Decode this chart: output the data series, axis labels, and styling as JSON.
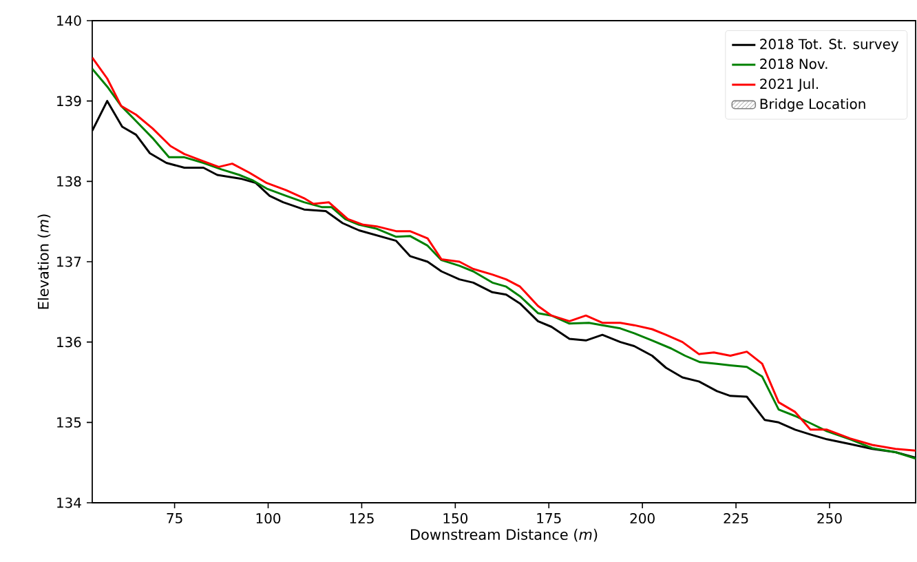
{
  "chart_data": {
    "type": "line",
    "xlabel": "Downstream Distance (*m*)",
    "ylabel": "Elevation (*m*)",
    "xlim": [
      53,
      273
    ],
    "ylim": [
      134,
      140
    ],
    "xticks": [
      75,
      100,
      125,
      150,
      175,
      200,
      225,
      250
    ],
    "yticks": [
      134,
      135,
      136,
      137,
      138,
      139,
      140
    ],
    "legend": "top right",
    "grid": false,
    "line_style": "solid",
    "marker": "none",
    "series": [
      {
        "name": "2018 Tot. St. survey",
        "color": "#000000",
        "x": [
          53,
          57,
          61,
          64.7,
          68.4,
          72.8,
          77.6,
          82.7,
          86.4,
          93,
          96.7,
          100.4,
          104,
          109.6,
          115.4,
          119.9,
          124.3,
          134.2,
          137.9,
          142.6,
          146.3,
          151.1,
          154.8,
          159.9,
          163.6,
          167.3,
          172.1,
          175.7,
          180.5,
          184.9,
          189.3,
          194.1,
          197.8,
          202.6,
          206.3,
          210.7,
          215.1,
          219.9,
          223.5,
          227.9,
          232.7,
          236.4,
          240.8,
          244.9,
          249.3,
          255.5,
          261.4,
          267.6,
          273
        ],
        "values": [
          138.63,
          139.0,
          138.68,
          138.58,
          138.35,
          138.23,
          138.17,
          138.17,
          138.08,
          138.03,
          137.98,
          137.82,
          137.74,
          137.65,
          137.63,
          137.48,
          137.39,
          137.26,
          137.07,
          137.0,
          136.88,
          136.78,
          136.74,
          136.62,
          136.59,
          136.48,
          136.26,
          136.19,
          136.04,
          136.02,
          136.09,
          136.0,
          135.95,
          135.83,
          135.68,
          135.56,
          135.51,
          135.39,
          135.33,
          135.32,
          135.03,
          135.0,
          134.91,
          134.85,
          134.79,
          134.73,
          134.67,
          134.63,
          134.56
        ]
      },
      {
        "name": "2018 Nov.",
        "color": "#008000",
        "x": [
          53,
          57,
          60.7,
          64.3,
          69.1,
          73.5,
          77.6,
          82.7,
          87.5,
          92.3,
          96,
          99.6,
          104.8,
          109.6,
          114.3,
          116.9,
          120.6,
          124.3,
          129,
          134.2,
          137.9,
          142.6,
          146.3,
          151.1,
          154.8,
          159.9,
          163.6,
          167.3,
          172.1,
          175.7,
          180.5,
          185.7,
          189.3,
          194.1,
          197.8,
          202.6,
          207.7,
          211.4,
          215.4,
          219.9,
          223.5,
          227.9,
          232,
          236.4,
          240.8,
          244.9,
          249.3,
          255.5,
          261.4,
          267.6,
          273
        ],
        "values": [
          139.4,
          139.18,
          138.94,
          138.77,
          138.54,
          138.3,
          138.3,
          138.23,
          138.15,
          138.08,
          138.01,
          137.91,
          137.82,
          137.74,
          137.68,
          137.68,
          137.53,
          137.46,
          137.41,
          137.31,
          137.32,
          137.2,
          137.02,
          136.95,
          136.88,
          136.74,
          136.69,
          136.57,
          136.36,
          136.33,
          136.23,
          136.24,
          136.21,
          136.17,
          136.11,
          136.02,
          135.92,
          135.83,
          135.75,
          135.73,
          135.71,
          135.69,
          135.57,
          135.16,
          135.08,
          134.99,
          134.89,
          134.79,
          134.68,
          134.63,
          134.55
        ]
      },
      {
        "name": "2021 Jul.",
        "color": "#ff0000",
        "x": [
          53,
          57,
          60.7,
          64.7,
          69.1,
          73.9,
          77.6,
          82.7,
          86.8,
          90.4,
          94.9,
          99.6,
          104.8,
          109.6,
          112.1,
          116.2,
          121.3,
          125.4,
          129,
          134.2,
          137.9,
          142.6,
          146.3,
          151.1,
          154.8,
          159.9,
          163.6,
          167.3,
          172.1,
          175.7,
          180.5,
          184.9,
          189.3,
          194.1,
          197.8,
          202.6,
          206.3,
          210.7,
          215.1,
          219.1,
          223.5,
          227.9,
          232,
          236.4,
          240.8,
          244.9,
          249.3,
          255.5,
          261.4,
          267.6,
          273
        ],
        "values": [
          139.54,
          139.28,
          138.94,
          138.83,
          138.66,
          138.44,
          138.34,
          138.25,
          138.18,
          138.22,
          138.11,
          137.98,
          137.89,
          137.79,
          137.72,
          137.74,
          137.53,
          137.46,
          137.44,
          137.38,
          137.38,
          137.29,
          137.03,
          137.0,
          136.91,
          136.84,
          136.78,
          136.69,
          136.45,
          136.33,
          136.26,
          136.33,
          136.24,
          136.24,
          136.21,
          136.16,
          136.09,
          136.0,
          135.85,
          135.87,
          135.83,
          135.88,
          135.73,
          135.25,
          135.13,
          134.91,
          134.91,
          134.8,
          134.72,
          134.67,
          134.65
        ]
      },
      {
        "name": "Bridge Location",
        "type": "area",
        "color": "#808080"
      }
    ]
  }
}
